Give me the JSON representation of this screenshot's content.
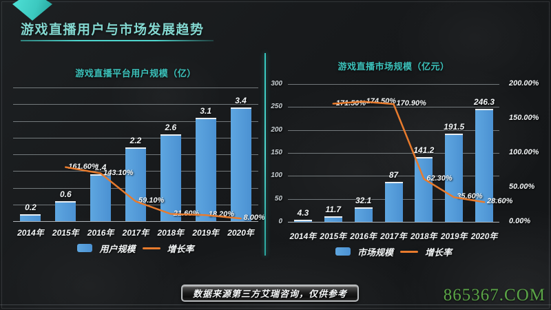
{
  "title": {
    "text": "游戏直播用户与市场发展趋势"
  },
  "footer": {
    "source_note": "数据来源第三方艾瑞咨询，仅供参考"
  },
  "watermark": {
    "text": "865367.COM",
    "color": "#5ba547"
  },
  "colors": {
    "accent_teal": "#3fd6cc",
    "title_teal": "#84d8d1",
    "chart_title_teal": "#3cc2bb",
    "bar_blue": "#4f97d7",
    "line_orange": "#e87b2d",
    "label_white": "#f3f6f7",
    "watermark_green": "#5ba547",
    "background_dark": "#17191b"
  },
  "chart_data": [
    {
      "type": "bar",
      "title": "游戏直播平台用户规模（亿）",
      "categories": [
        "2014年",
        "2015年",
        "2016年",
        "2017年",
        "2018年",
        "2019年",
        "2020年"
      ],
      "series": [
        {
          "name": "用户规模",
          "type": "bar",
          "values": [
            0.2,
            0.6,
            1.4,
            2.2,
            2.6,
            3.1,
            3.4
          ],
          "value_labels": [
            "0.2",
            "0.6",
            "1.4",
            "2.2",
            "2.6",
            "3.1",
            "3.4"
          ]
        },
        {
          "name": "增长率",
          "type": "line",
          "values": [
            null,
            161.6,
            143.1,
            59.1,
            21.6,
            18.2,
            8.0
          ],
          "value_labels": [
            null,
            "161.60%",
            "143.10%",
            "59.10%",
            "21.60%",
            "18.20%",
            "8.00%"
          ]
        }
      ],
      "ylim": [
        0,
        4
      ],
      "y2lim": [
        0,
        400
      ],
      "gridline_count": 9,
      "y_ticks": [],
      "y2_ticks": [],
      "grid": true,
      "legend": [
        "用户规模",
        "增长率"
      ],
      "legend_position": "bottom"
    },
    {
      "type": "bar",
      "title": "游戏直播市场规模（亿元）",
      "categories": [
        "2014年",
        "2015年",
        "2016年",
        "2017年",
        "2018年",
        "2019年",
        "2020年"
      ],
      "series": [
        {
          "name": "市场规模",
          "type": "bar",
          "values": [
            4.3,
            11.7,
            32.1,
            87,
            141.2,
            191.5,
            246.3
          ],
          "value_labels": [
            "4.3",
            "11.7",
            "32.1",
            "87",
            "141.2",
            "191.5",
            "246.3"
          ]
        },
        {
          "name": "增长率",
          "type": "line",
          "values": [
            null,
            171.5,
            174.5,
            170.9,
            62.3,
            35.6,
            28.6
          ],
          "value_labels": [
            null,
            "171.50%",
            "174.50%",
            "170.90%",
            "62.30%",
            "35.60%",
            "28.60%"
          ]
        }
      ],
      "ylim": [
        0,
        300
      ],
      "y2lim": [
        0,
        200
      ],
      "gridline_count": 7,
      "y_ticks": [
        "300",
        "250",
        "200",
        "150",
        "100",
        "50",
        "0"
      ],
      "y2_ticks": [
        "200.00%",
        "150.00%",
        "100.00%",
        "50.00%",
        "0.00%"
      ],
      "grid": true,
      "legend": [
        "市场规模",
        "增长率"
      ],
      "legend_position": "bottom"
    }
  ]
}
